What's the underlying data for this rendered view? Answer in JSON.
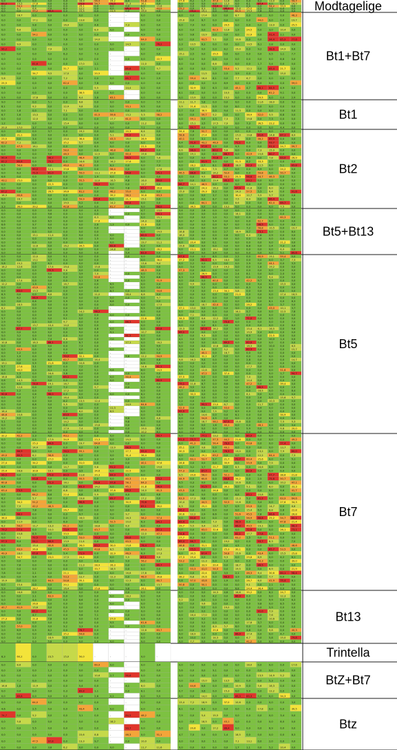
{
  "chart_data": {
    "type": "heatmap",
    "title": "",
    "row_groups": [
      {
        "label": "Modtagelige",
        "rows": 5
      },
      {
        "label": "Bt1+Bt7",
        "rows": 18
      },
      {
        "label": "Bt1",
        "rows": 7
      },
      {
        "label": "Bt2",
        "rows": 21
      },
      {
        "label": "Bt5+Bt13",
        "rows": 13
      },
      {
        "label": "Bt5",
        "rows": 52
      },
      {
        "label": "Bt7",
        "rows": 40
      },
      {
        "label": "Bt13",
        "rows": 14
      },
      {
        "label": "Trintella",
        "rows": 1
      },
      {
        "label": "BtZ+Bt7",
        "rows": 7
      },
      {
        "label": "Btz",
        "rows": 8
      }
    ],
    "columns_per_block": [
      11,
      11
    ],
    "color_scale": {
      "low": "#7dc142",
      "mid_low": "#c6d94a",
      "mid": "#f3e33a",
      "mid_high": "#f3a53a",
      "high": "#e0352b",
      "blank": "#ffffff"
    },
    "sample_values": {
      "Trintella": [
        "8,3",
        "60,2",
        "0,0",
        "23,5",
        "15,0",
        "50,0",
        "-",
        "-",
        "-",
        "0,0",
        "-"
      ]
    }
  }
}
